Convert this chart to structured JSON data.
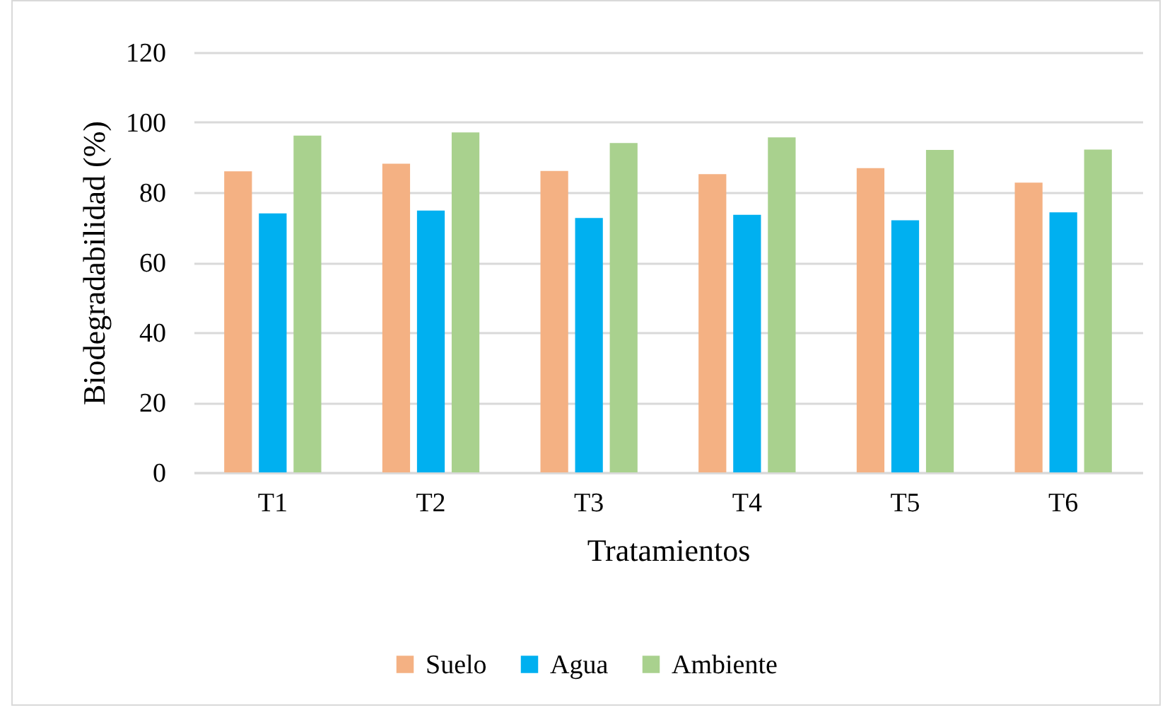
{
  "chart_data": {
    "type": "bar",
    "categories": [
      "T1",
      "T2",
      "T3",
      "T4",
      "T5",
      "T6"
    ],
    "series": [
      {
        "name": "Suelo",
        "color": "#f4b183",
        "values": [
          86.0,
          88.2,
          86.1,
          85.2,
          86.9,
          82.8
        ]
      },
      {
        "name": "Agua",
        "color": "#00b0f0",
        "values": [
          74.0,
          74.8,
          72.7,
          73.6,
          72.0,
          74.3
        ]
      },
      {
        "name": "Ambiente",
        "color": "#a9d18e",
        "values": [
          96.2,
          97.1,
          94.1,
          95.7,
          92.1,
          92.2
        ]
      }
    ],
    "xlabel": "Tratamientos",
    "ylabel": "Biodegradabilidad (%)",
    "ylim": [
      0,
      120
    ],
    "yticks": [
      0,
      20,
      40,
      60,
      80,
      100,
      120
    ],
    "grid": "y",
    "legend": "bottom"
  }
}
